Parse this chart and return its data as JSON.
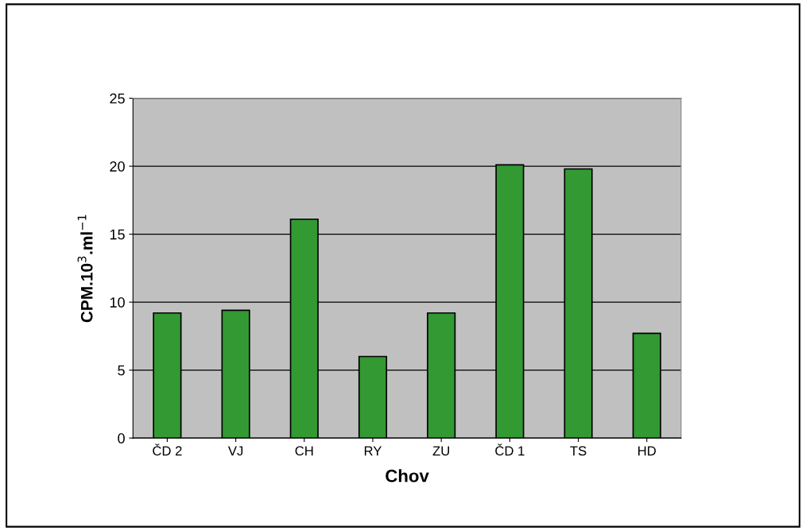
{
  "chart_data": {
    "type": "bar",
    "xlabel": "Chov",
    "ylabel": "CPM.10$^{3}$.ml$^{−1}$",
    "categories": [
      "ČD 2",
      "VJ",
      "CH",
      "RY",
      "ZU",
      "ČD 1",
      "TS",
      "HD"
    ],
    "values": [
      9.2,
      9.4,
      16.1,
      6.0,
      9.2,
      20.1,
      19.8,
      7.7
    ],
    "color": "#339933",
    "ylim": [
      0,
      25
    ],
    "yticks": [
      0,
      5,
      10,
      15,
      20,
      25
    ],
    "grid": "y"
  }
}
